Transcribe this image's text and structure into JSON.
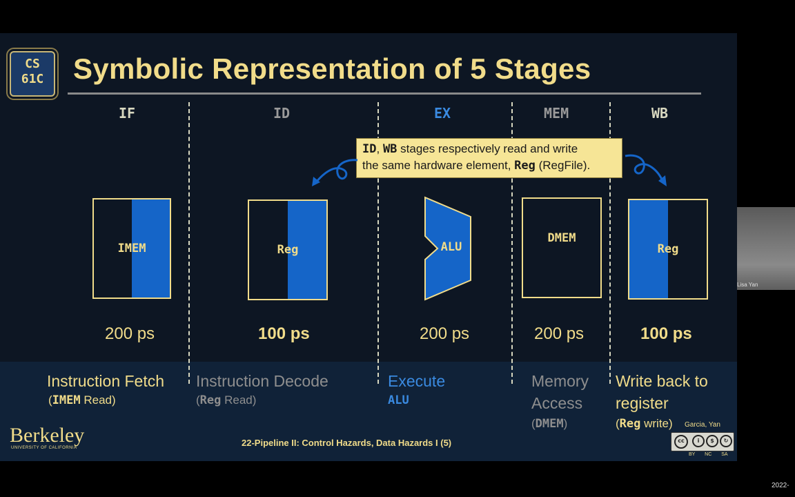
{
  "logo": {
    "text": "CS\n61C"
  },
  "title": "Symbolic Representation of 5 Stages",
  "stages": [
    {
      "id": "IF",
      "label_color": "#d8d8c0",
      "component": "IMEM",
      "latency": "200 ps",
      "latency_bold": false,
      "name": "Instruction Fetch",
      "name_color": "#f1dc8a",
      "sub_code": "IMEM",
      "sub_text": " Read)"
    },
    {
      "id": "ID",
      "label_color": "#9a9a9a",
      "component": "Reg",
      "latency": "100 ps",
      "latency_bold": true,
      "name": "Instruction Decode",
      "name_color": "#8e8e8e",
      "sub_code": "Reg",
      "sub_text": " Read)"
    },
    {
      "id": "EX",
      "label_color": "#3a8ae0",
      "component": "ALU",
      "latency": "200 ps",
      "latency_bold": false,
      "name": "Execute",
      "name_color": "#3a8ae0",
      "sub_code": "ALU",
      "sub_text": ""
    },
    {
      "id": "MEM",
      "label_color": "#9a9a9a",
      "component": "DMEM",
      "latency": "200 ps",
      "latency_bold": false,
      "name_line1": "Memory",
      "name_line2": "Access",
      "name_color": "#8e8e8e",
      "sub_code": "DMEM",
      "sub_text": ")"
    },
    {
      "id": "WB",
      "label_color": "#d8d8c0",
      "component": "Reg",
      "latency": "100 ps",
      "latency_bold": true,
      "name_line1": "Write back to",
      "name_line2": "register",
      "name_color": "#f1dc8a",
      "sub_code": "Reg",
      "sub_text": " write)"
    }
  ],
  "callout": {
    "code1": "ID",
    "sep": ", ",
    "code2": "WB",
    "text1": " stages respectively read and write",
    "text2": "the same hardware element, ",
    "code3": "Reg",
    "text3": " (RegFile)."
  },
  "footer": {
    "university": "Berkeley",
    "university_sub": "UNIVERSITY OF CALIFORNIA",
    "lecture": "22-Pipeline II: Control Hazards, Data Hazards I (5)",
    "authors": "Garcia, Yan",
    "license_tags": "BY NC SA"
  },
  "webcam_name": "Lisa Yan",
  "corner_date": "2022-",
  "colors": {
    "background": "#0d1623",
    "accent_gold": "#f1dc8a",
    "accent_blue": "#1565c8",
    "callout_bg": "#f6e596"
  }
}
